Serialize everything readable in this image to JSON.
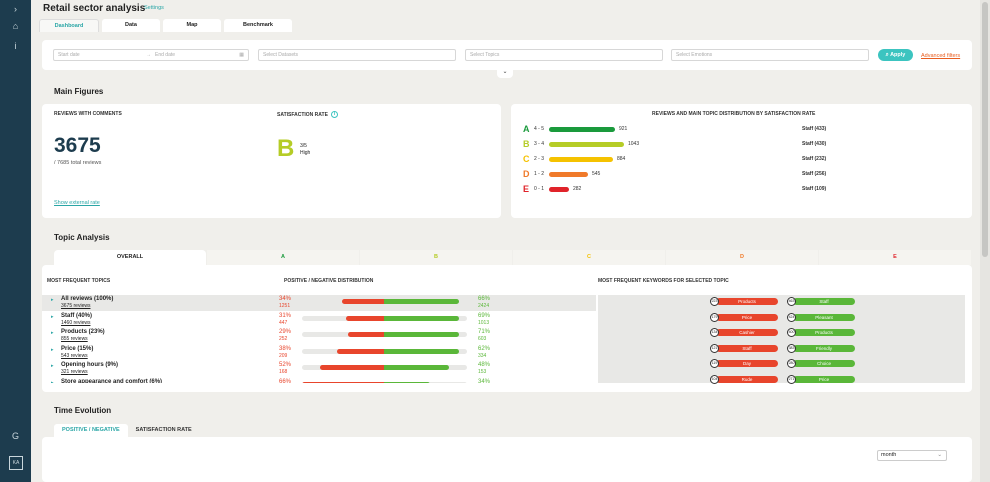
{
  "app": {
    "title": "Retail sector analysis",
    "settings_link": "Settings"
  },
  "sidebar": {
    "items": [
      {
        "icon": "chevron-right-icon",
        "glyph": "›"
      },
      {
        "icon": "home-icon",
        "glyph": "⌂"
      },
      {
        "icon": "info-icon",
        "glyph": "i"
      },
      {
        "icon": "refresh-icon",
        "glyph": "G"
      },
      {
        "icon": "logo-icon",
        "glyph": "KA"
      }
    ]
  },
  "tabs": [
    "Dashboard",
    "Data",
    "Map",
    "Benchmark"
  ],
  "filters": {
    "start_date": "Start date",
    "end_date": "End date",
    "datasets": "Select Datasets",
    "topics": "Select Topics",
    "emotions": "Select Emotions",
    "apply": "Apply",
    "advanced": "Advanced filters"
  },
  "main_figures": {
    "section_title": "Main Figures",
    "reviews_label": "REVIEWS WITH COMMENTS",
    "reviews_count": "3675",
    "total_reviews": "/ 7685 total reviews",
    "show_external": "Show external rate",
    "satisfaction_label": "SATISFACTION RATE",
    "grade": "B",
    "grade_score": "3/5",
    "grade_text": "High"
  },
  "distribution": {
    "title": "REVIEWS AND MAIN TOPIC DISTRIBUTION BY SATISFACTION RATE",
    "rows": [
      {
        "letter": "A",
        "range": "4 - 5",
        "count": "921",
        "value": 921,
        "color": "#1a9a3c",
        "topic": "Staff (433)"
      },
      {
        "letter": "B",
        "range": "3 - 4",
        "count": "1043",
        "value": 1043,
        "color": "#b5cc26",
        "topic": "Staff (430)"
      },
      {
        "letter": "C",
        "range": "2 - 3",
        "count": "884",
        "value": 884,
        "color": "#f5c200",
        "topic": "Staff (232)"
      },
      {
        "letter": "D",
        "range": "1 - 2",
        "count": "545",
        "value": 545,
        "color": "#f07a2a",
        "topic": "Staff (256)"
      },
      {
        "letter": "E",
        "range": "0 - 1",
        "count": "282",
        "value": 282,
        "color": "#e0232a",
        "topic": "Staff (109)"
      }
    ]
  },
  "topic_analysis": {
    "section_title": "Topic Analysis",
    "tabs": [
      {
        "label": "OVERALL",
        "color": "#222"
      },
      {
        "label": "A",
        "color": "#1a9a3c"
      },
      {
        "label": "B",
        "color": "#b5cc26"
      },
      {
        "label": "C",
        "color": "#f5c200"
      },
      {
        "label": "D",
        "color": "#f07a2a"
      },
      {
        "label": "E",
        "color": "#e0232a"
      }
    ],
    "col_topics": "MOST FREQUENT TOPICS",
    "col_dist": "POSITIVE / NEGATIVE DISTRIBUTION",
    "col_keywords": "MOST FREQUENT KEYWORDS FOR SELECTED TOPIC",
    "rows": [
      {
        "name": "All reviews (100%)",
        "count": "3675 reviews",
        "neg_pct": "34%",
        "neg_count": "1251",
        "pos_pct": "66%",
        "pos_count": "2424",
        "neg": 0.34,
        "pos": 0.66,
        "selected": true
      },
      {
        "name": "Staff (40%)",
        "count": "1460 reviews",
        "neg_pct": "31%",
        "neg_count": "447",
        "pos_pct": "69%",
        "pos_count": "1013",
        "neg": 0.31,
        "pos": 0.69,
        "selected": false
      },
      {
        "name": "Products (23%)",
        "count": "855 reviews",
        "neg_pct": "29%",
        "neg_count": "252",
        "pos_pct": "71%",
        "pos_count": "603",
        "neg": 0.29,
        "pos": 0.71,
        "selected": false
      },
      {
        "name": "Price (15%)",
        "count": "543 reviews",
        "neg_pct": "38%",
        "neg_count": "209",
        "pos_pct": "62%",
        "pos_count": "334",
        "neg": 0.38,
        "pos": 0.62,
        "selected": false
      },
      {
        "name": "Opening hours (9%)",
        "count": "321 reviews",
        "neg_pct": "52%",
        "neg_count": "168",
        "pos_pct": "48%",
        "pos_count": "153",
        "neg": 0.52,
        "pos": 0.48,
        "selected": false
      },
      {
        "name": "Store appearance and comfort (6%)",
        "count": "",
        "neg_pct": "66%",
        "neg_count": "",
        "pos_pct": "34%",
        "pos_count": "",
        "neg": 0.66,
        "pos": 0.34,
        "selected": false
      }
    ],
    "keywords_negative": [
      {
        "num": "223",
        "word": "Products"
      },
      {
        "num": "179",
        "word": "Price"
      },
      {
        "num": "134",
        "word": "Cashier"
      },
      {
        "num": "121",
        "word": "Staff"
      },
      {
        "num": "119",
        "word": "Day"
      },
      {
        "num": "104",
        "word": "Rude"
      }
    ],
    "keywords_positive": [
      {
        "num": "463",
        "word": "Staff"
      },
      {
        "num": "424",
        "word": "Pleasant"
      },
      {
        "num": "400",
        "word": "Products"
      },
      {
        "num": "383",
        "word": "Friendly"
      },
      {
        "num": "280",
        "word": "Choice"
      },
      {
        "num": "271",
        "word": "Price"
      }
    ]
  },
  "time_evolution": {
    "section_title": "Time Evolution",
    "tabs": [
      "POSITIVE / NEGATIVE",
      "SATISFACTION RATE"
    ],
    "period": "month"
  }
}
